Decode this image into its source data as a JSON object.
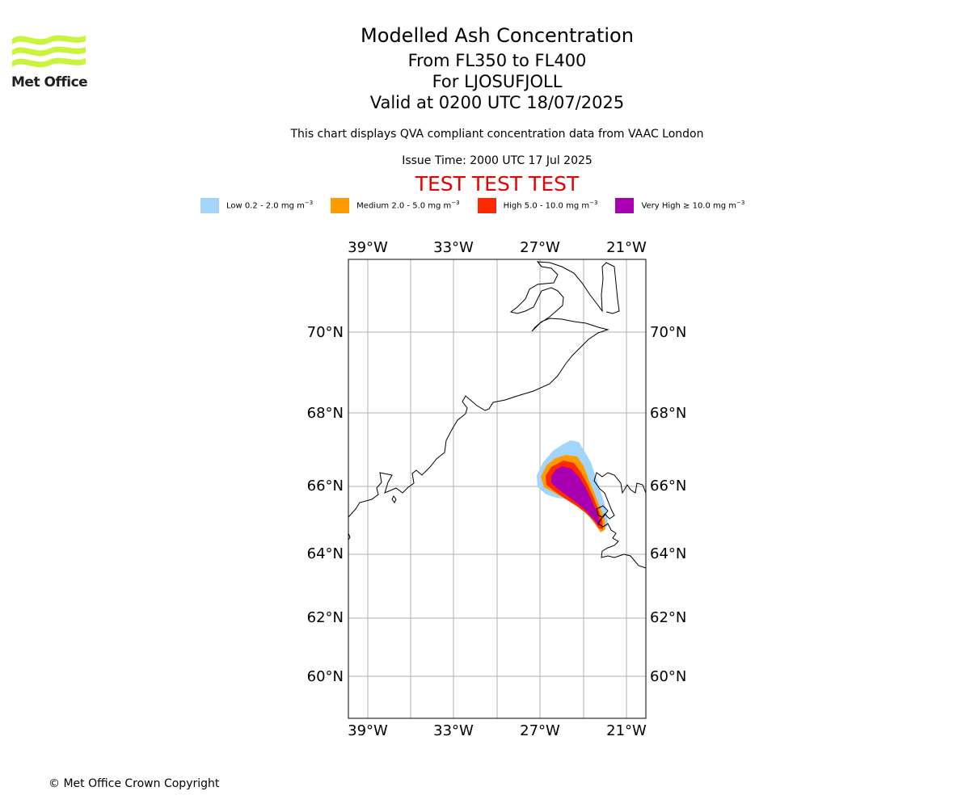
{
  "header": {
    "title": "Modelled Ash Concentration",
    "levels": "From FL350 to FL400",
    "volcano": "For LJOSUFJOLL",
    "valid": "Valid at 0200 UTC 18/07/2025",
    "description": "This chart displays QVA compliant concentration data from VAAC London",
    "issue_time": "Issue Time: 2000 UTC 17 Jul 2025",
    "test_banner": "TEST TEST TEST"
  },
  "logo": {
    "text": "Met Office",
    "color": "#c8f53a"
  },
  "legend": [
    {
      "label": "Low 0.2 - 2.0 mg m",
      "sup": "−3",
      "color": "#a3d4fa"
    },
    {
      "label": "Medium 2.0 - 5.0 mg m",
      "sup": "−3",
      "color": "#ff9a00"
    },
    {
      "label": "High 5.0 - 10.0 mg m",
      "sup": "−3",
      "color": "#ff2a00"
    },
    {
      "label": "Very High  ≥  10.0 mg m",
      "sup": "−3",
      "color": "#a800b0"
    }
  ],
  "map": {
    "lon_labels": [
      "39°W",
      "33°W",
      "27°W",
      "21°W"
    ],
    "lat_labels": [
      "70°N",
      "68°N",
      "66°N",
      "64°N",
      "62°N",
      "60°N"
    ]
  },
  "footer": {
    "copyright": "© Met Office Crown Copyright"
  }
}
